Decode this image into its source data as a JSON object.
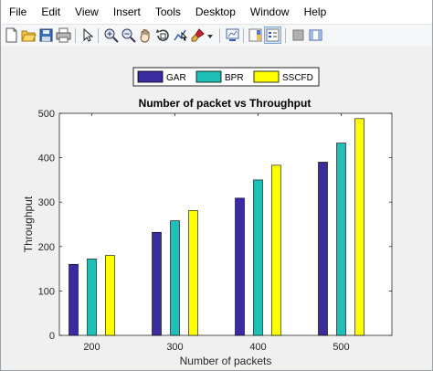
{
  "menu": [
    "File",
    "Edit",
    "View",
    "Insert",
    "Tools",
    "Desktop",
    "Window",
    "Help"
  ],
  "toolbar_icons": [
    "new-figure-icon",
    "open-file-icon",
    "save-icon",
    "print-icon",
    "select-arrow-icon",
    "zoom-in-icon",
    "zoom-out-icon",
    "pan-icon",
    "rotate-3d-icon",
    "data-cursor-icon",
    "brush-icon",
    "brush-dropdown-icon",
    "link-plot-icon",
    "insert-colorbar-icon",
    "insert-legend-icon",
    "hide-plot-tools-icon",
    "show-plot-tools-icon"
  ],
  "colors": {
    "GAR": "#3a2ba0",
    "BPR": "#1fbfb8",
    "SSCFD": "#ffff00"
  },
  "chart_data": {
    "type": "bar",
    "title": "Number of packet vs Throughput",
    "xlabel": "Number of packets",
    "ylabel": "Throughput",
    "categories": [
      "200",
      "300",
      "400",
      "500"
    ],
    "series": [
      {
        "name": "GAR",
        "values": [
          160,
          232,
          309,
          390
        ]
      },
      {
        "name": "BPR",
        "values": [
          172,
          258,
          350,
          433
        ]
      },
      {
        "name": "SSCFD",
        "values": [
          180,
          281,
          383,
          488
        ]
      }
    ],
    "ylim": [
      0,
      500
    ],
    "yticks": [
      "0",
      "100",
      "200",
      "300",
      "400",
      "500"
    ],
    "legend_position": "top-center",
    "grid": false
  }
}
